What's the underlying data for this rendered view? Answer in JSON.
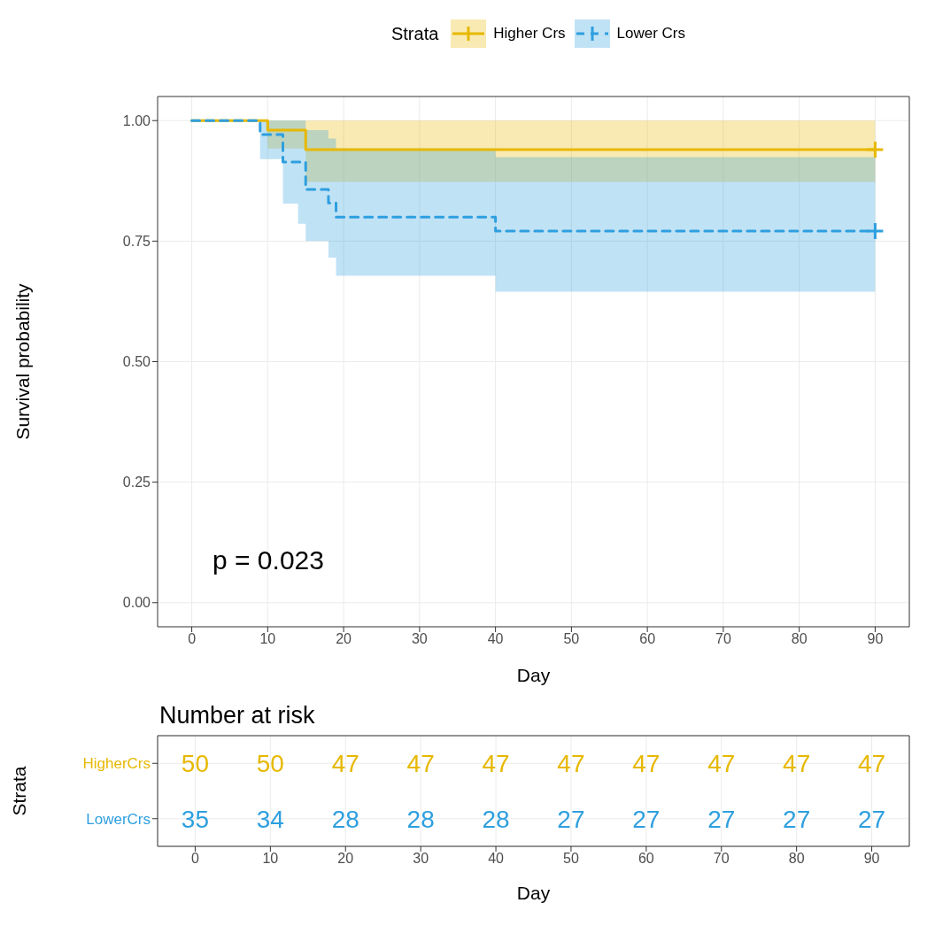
{
  "chart_data": [
    {
      "type": "step",
      "legend_title": "Strata",
      "legend": "top",
      "ylabel": "Survival probability",
      "xlabel": "Day",
      "grid": true,
      "xlim": [
        -4.5,
        94.5
      ],
      "xticks": [
        0,
        10,
        20,
        30,
        40,
        50,
        60,
        70,
        80,
        90
      ],
      "ylim": [
        -0.05,
        1.05
      ],
      "yticks": [
        {
          "value": 0,
          "label": "0.00"
        },
        {
          "value": 0.25,
          "label": "0.25"
        },
        {
          "value": 0.5,
          "label": "0.50"
        },
        {
          "value": 0.75,
          "label": "0.75"
        },
        {
          "value": 1,
          "label": "1.00"
        }
      ],
      "annotations": [
        "p = 0.023"
      ],
      "series": [
        {
          "name": "Higher Crs",
          "type": "step",
          "color": "#e7b800",
          "line_style": "solid",
          "x": [
            0,
            10,
            15,
            90
          ],
          "values": [
            1,
            0.98,
            0.94,
            0.94
          ],
          "lower": [
            1,
            0.942,
            0.873,
            0.873
          ],
          "upper": [
            1,
            1,
            1,
            1
          ]
        },
        {
          "name": "Lower Crs",
          "type": "step",
          "color": "#2e9fdf",
          "line_style": "dashed",
          "x": [
            0,
            9,
            12,
            14,
            15,
            18,
            19,
            40,
            90
          ],
          "values": [
            1,
            0.971,
            0.914,
            0.914,
            0.857,
            0.829,
            0.8,
            0.771,
            0.771
          ],
          "lower": [
            1,
            0.92,
            0.828,
            0.786,
            0.75,
            0.716,
            0.678,
            0.645,
            0.645
          ],
          "upper": [
            1,
            1,
            1,
            1,
            0.98,
            0.963,
            0.942,
            0.924,
            0.924
          ]
        },
        {
          "type": "scatter",
          "color": "#e7b800",
          "marker": "cross",
          "x": [
            90
          ],
          "values": [
            0.94
          ]
        },
        {
          "type": "scatter",
          "color": "#2e9fdf",
          "marker": "cross",
          "x": [
            90
          ],
          "values": [
            0.771
          ]
        }
      ]
    },
    {
      "type": "heatmap",
      "title": "Number at risk",
      "xlabel": "Day",
      "ylabel": "Strata",
      "grid": true,
      "categories": [
        "0",
        "10",
        "20",
        "30",
        "40",
        "50",
        "60",
        "70",
        "80",
        "90"
      ],
      "y_categories": [
        "HigherCrs",
        "LowerCrs"
      ],
      "data_labels": true,
      "colors": [
        "#e7b800",
        "#2e9fdf"
      ],
      "cells": [
        [
          50,
          50,
          47,
          47,
          47,
          47,
          47,
          47,
          47,
          47
        ],
        [
          35,
          34,
          28,
          28,
          28,
          27,
          27,
          27,
          27,
          27
        ]
      ]
    }
  ]
}
